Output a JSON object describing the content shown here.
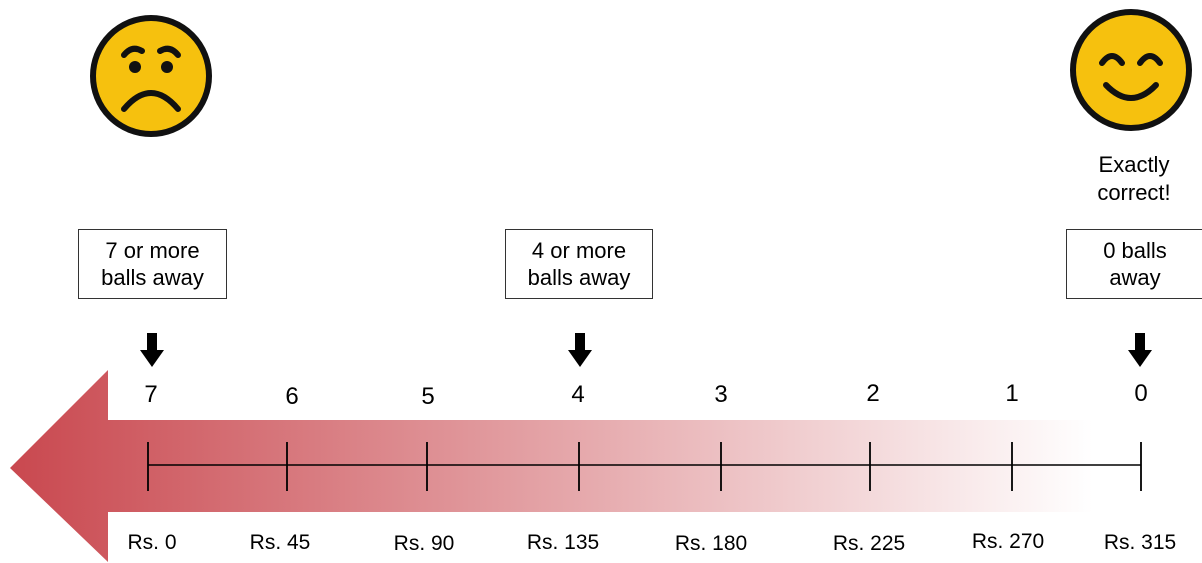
{
  "scale": {
    "ticks": [
      "7",
      "6",
      "5",
      "4",
      "3",
      "2",
      "1",
      "0"
    ],
    "prices": [
      "Rs. 0",
      "Rs. 45",
      "Rs. 90",
      "Rs. 135",
      "Rs. 180",
      "Rs. 225",
      "Rs. 270",
      "Rs. 315"
    ]
  },
  "boxes": {
    "left": "7 or more\nballs away",
    "middle": "4 or more\nballs away",
    "right": "0 balls\naway"
  },
  "caption_right": "Exactly\ncorrect!",
  "icons": {
    "sad": "sad-face-icon",
    "happy": "happy-face-icon",
    "pointer": "down-arrow-icon"
  },
  "colors": {
    "arrow_gradient_start": "#c9484f",
    "arrow_gradient_end": "#ffffff",
    "face_fill": "#f6c10e",
    "face_outline": "#111111"
  }
}
